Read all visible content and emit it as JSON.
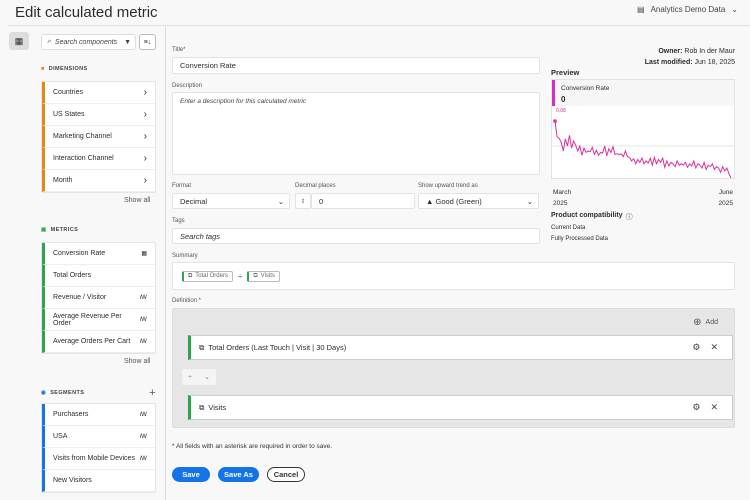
{
  "header": {
    "title": "Edit calculated metric",
    "data_source": "Analytics Demo Data"
  },
  "panel": {
    "search_placeholder": "Search components",
    "dimensions": {
      "label": "DIMENSIONS",
      "color": "#e68619",
      "items": [
        "Countries",
        "US States",
        "Marketing Channel",
        "Interaction Channel",
        "Month"
      ],
      "show_all": "Show all"
    },
    "metrics": {
      "label": "METRICS",
      "color": "#2da44e",
      "items": [
        {
          "label": "Conversion Rate",
          "icon": "calculator-icon"
        },
        {
          "label": "Total Orders",
          "icon": ""
        },
        {
          "label": "Revenue / Visitor",
          "icon": "adobe-icon"
        },
        {
          "label": "Average Revenue Per Order",
          "icon": "adobe-icon"
        },
        {
          "label": "Average Orders Per Cart",
          "icon": "adobe-icon"
        }
      ],
      "show_all": "Show all"
    },
    "segments": {
      "label": "SEGMENTS",
      "color": "#1473e6",
      "items": [
        {
          "label": "Purchasers",
          "icon": "adobe-icon"
        },
        {
          "label": "USA",
          "icon": "adobe-icon"
        },
        {
          "label": "Visits from Mobile Devices",
          "icon": "adobe-icon"
        },
        {
          "label": "New Visitors",
          "icon": ""
        }
      ]
    }
  },
  "form": {
    "title_label": "Title*",
    "title_value": "Conversion Rate",
    "description_label": "Description",
    "description_placeholder": "Enter a description for this calculated metric",
    "format_label": "Format",
    "format_value": "Decimal",
    "decimal_label": "Decimal places",
    "decimal_value": "0",
    "trend_label": "Show upward trend as",
    "trend_value": "▲ Good (Green)",
    "tags_label": "Tags",
    "tags_placeholder": "Search tags",
    "summary_label": "Summary",
    "summary_items": [
      "Total Orders",
      "Visits"
    ],
    "summary_operator": "÷",
    "definition_label": "Definition *",
    "add_label": "Add",
    "definition_rows": [
      "Total Orders (Last Touch | Visit | 30 Days)",
      "Visits"
    ],
    "operator": "÷",
    "required_note": "* All fields with an asterisk are required in order to save.",
    "save": "Save",
    "save_as": "Save As",
    "cancel": "Cancel"
  },
  "meta": {
    "owner_label": "Owner:",
    "owner": "Rob In der Maur",
    "modified_label": "Last modified:",
    "modified": "Jun 18, 2025"
  },
  "preview": {
    "label": "Preview",
    "metric": "Conversion Rate",
    "value": "0",
    "accent": "#d030c8",
    "line_color": "#e0309a",
    "x_start": [
      "March",
      "2025"
    ],
    "x_end": [
      "June",
      "2025"
    ],
    "compat_label": "Product compatibility",
    "compat_items": [
      "Current Data",
      "Fully Processed Data"
    ]
  },
  "chart_data": {
    "type": "line",
    "peak_label": "0.08",
    "ylim": [
      0,
      0.09
    ],
    "values": [
      0.08,
      0.058,
      0.056,
      0.05,
      0.038,
      0.055,
      0.045,
      0.06,
      0.042,
      0.052,
      0.046,
      0.038,
      0.045,
      0.032,
      0.042,
      0.036,
      0.038,
      0.037,
      0.043,
      0.033,
      0.039,
      0.032,
      0.036,
      0.035,
      0.045,
      0.031,
      0.041,
      0.036,
      0.044,
      0.033,
      0.034,
      0.033,
      0.034,
      0.03,
      0.038,
      0.03,
      0.029,
      0.024,
      0.027,
      0.02,
      0.026,
      0.022,
      0.028,
      0.02,
      0.024,
      0.021,
      0.028,
      0.018,
      0.029,
      0.02,
      0.026,
      0.022,
      0.028,
      0.015,
      0.024,
      0.017,
      0.022,
      0.02,
      0.016,
      0.024,
      0.018,
      0.02,
      0.018,
      0.022,
      0.015,
      0.02,
      0.017,
      0.024,
      0.014,
      0.02,
      0.018,
      0.014,
      0.022,
      0.012,
      0.018,
      0.016,
      0.02,
      0.012,
      0.016,
      0.014,
      0.008,
      0.016,
      0.01,
      0.014,
      0.006,
      0.0
    ]
  }
}
